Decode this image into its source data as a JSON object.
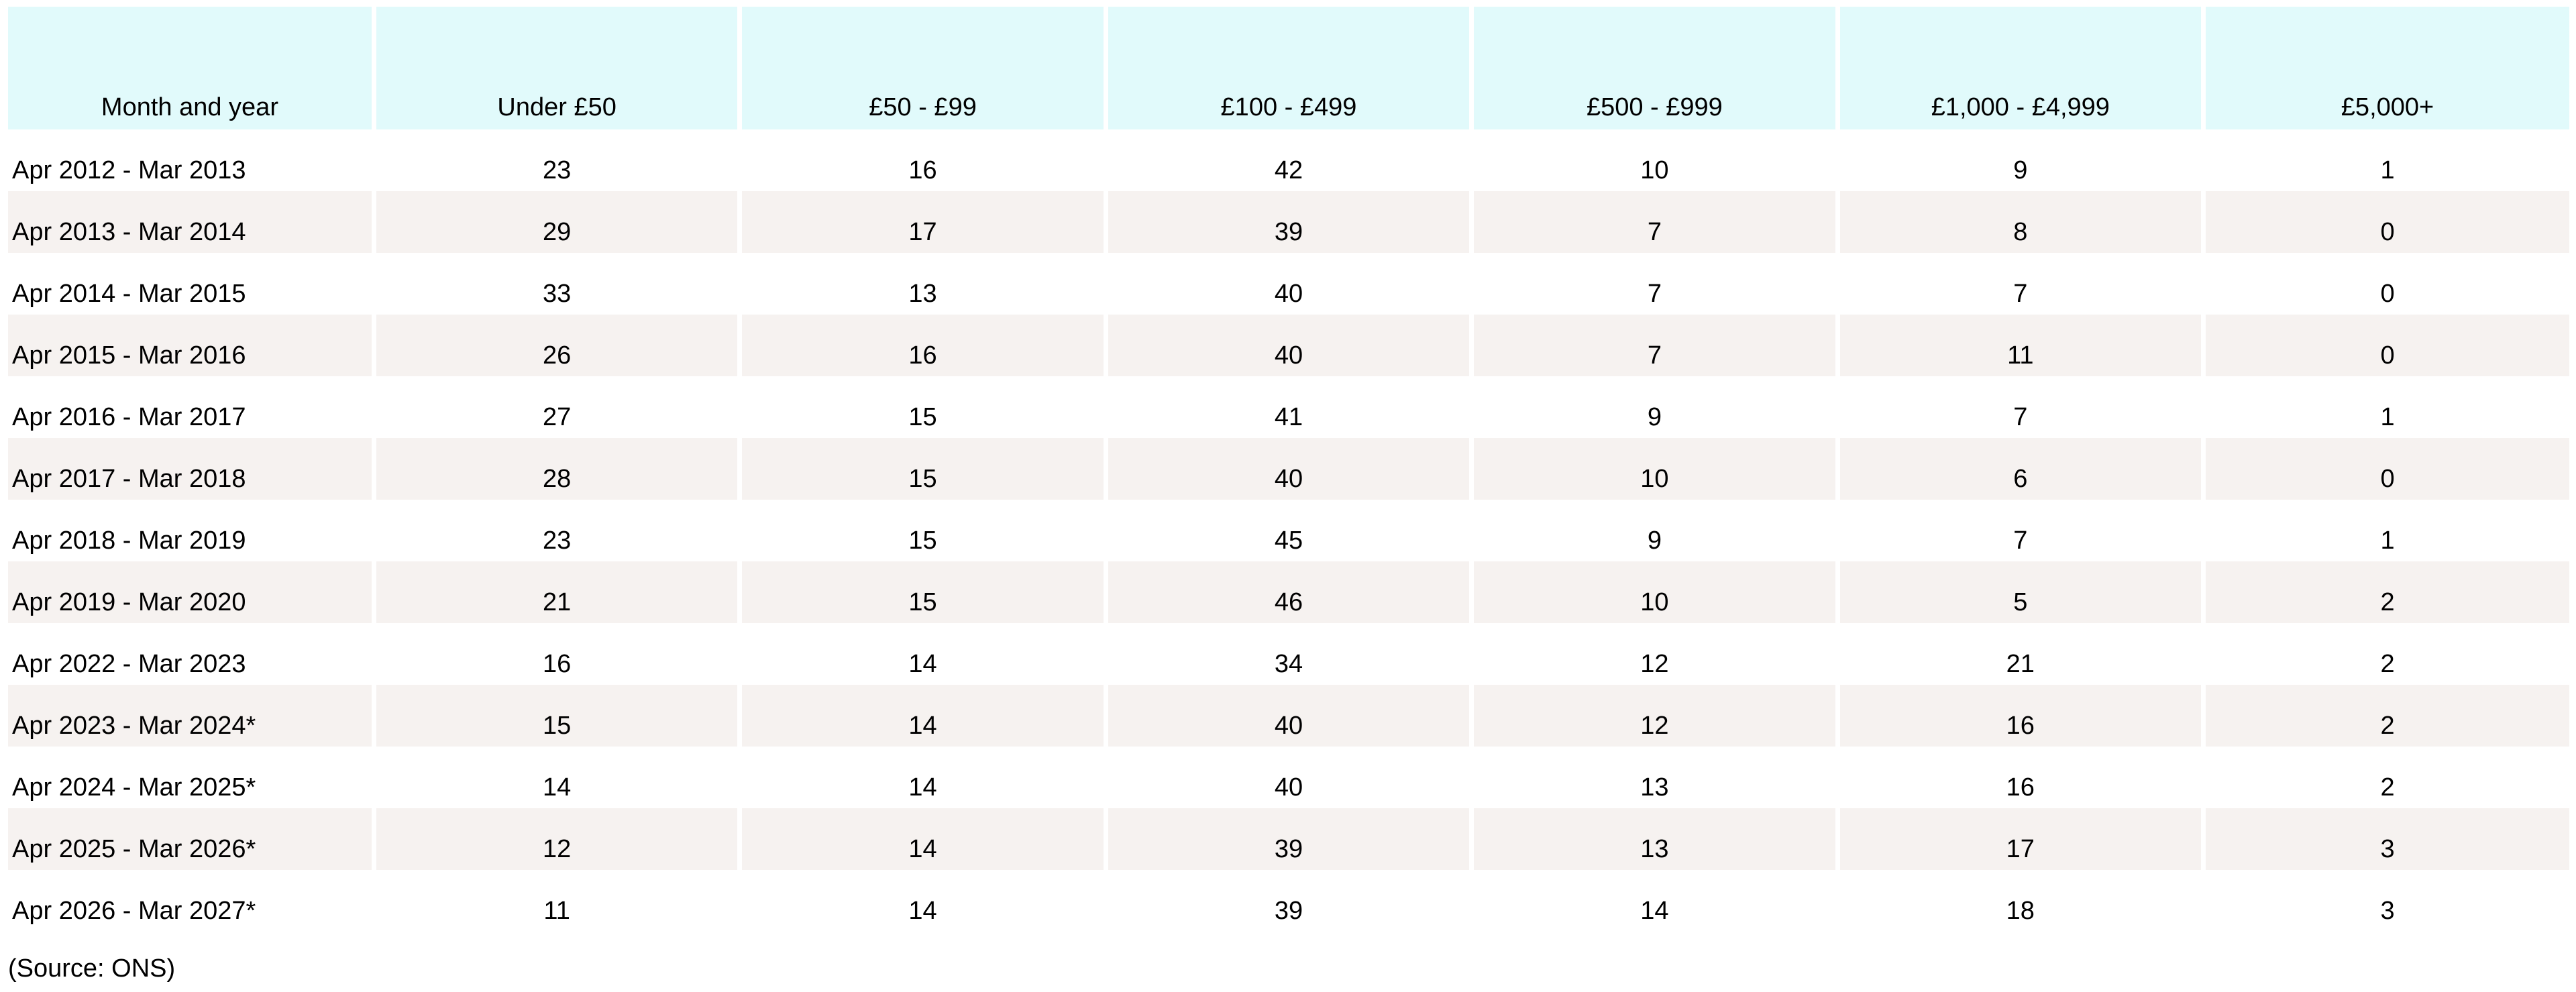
{
  "chart_data": {
    "type": "table",
    "columns": [
      "Month and year",
      "Under £50",
      "£50 - £99",
      "£100 - £499",
      "£500 - £999",
      "£1,000 - £4,999",
      "£5,000+"
    ],
    "rows": [
      {
        "month_and_year": "Apr 2012 - Mar 2013",
        "values": [
          23,
          16,
          42,
          10,
          9,
          1
        ]
      },
      {
        "month_and_year": "Apr 2013 - Mar 2014",
        "values": [
          29,
          17,
          39,
          7,
          8,
          0
        ]
      },
      {
        "month_and_year": "Apr 2014 - Mar 2015",
        "values": [
          33,
          13,
          40,
          7,
          7,
          0
        ]
      },
      {
        "month_and_year": "Apr 2015 - Mar 2016",
        "values": [
          26,
          16,
          40,
          7,
          11,
          0
        ]
      },
      {
        "month_and_year": "Apr 2016 - Mar 2017",
        "values": [
          27,
          15,
          41,
          9,
          7,
          1
        ]
      },
      {
        "month_and_year": "Apr 2017 - Mar 2018",
        "values": [
          28,
          15,
          40,
          10,
          6,
          0
        ]
      },
      {
        "month_and_year": "Apr 2018 - Mar 2019",
        "values": [
          23,
          15,
          45,
          9,
          7,
          1
        ]
      },
      {
        "month_and_year": "Apr 2019 - Mar 2020",
        "values": [
          21,
          15,
          46,
          10,
          5,
          2
        ]
      },
      {
        "month_and_year": "Apr 2022 - Mar 2023",
        "values": [
          16,
          14,
          34,
          12,
          21,
          2
        ]
      },
      {
        "month_and_year": "Apr 2023 - Mar 2024*",
        "values": [
          15,
          14,
          40,
          12,
          16,
          2
        ]
      },
      {
        "month_and_year": "Apr 2024 - Mar 2025*",
        "values": [
          14,
          14,
          40,
          13,
          16,
          2
        ]
      },
      {
        "month_and_year": "Apr 2025 - Mar 2026*",
        "values": [
          12,
          14,
          39,
          13,
          17,
          3
        ]
      },
      {
        "month_and_year": "Apr 2026 - Mar 2027*",
        "values": [
          11,
          14,
          39,
          14,
          18,
          3
        ]
      }
    ],
    "source_note": "(Source: ONS)",
    "layout": {
      "grid": "off",
      "header_position": "top",
      "row_striping": "alternate"
    }
  },
  "colors": {
    "header_bg": "#e1fafb",
    "row_alt_bg": "#f6f2f0",
    "text": "#000000",
    "page_bg": "#ffffff"
  }
}
